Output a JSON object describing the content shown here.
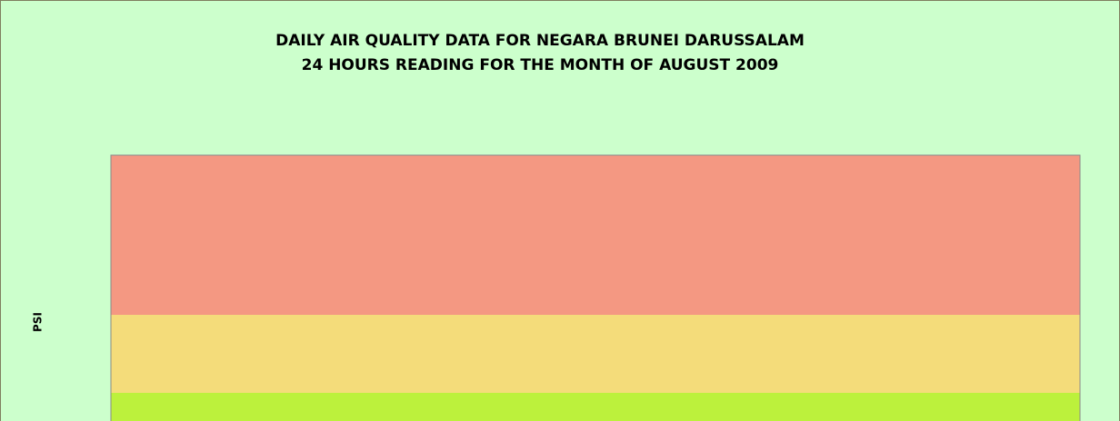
{
  "chart_data": {
    "type": "bands",
    "title": [
      "DAILY AIR QUALITY DATA FOR NEGARA BRUNEI DARUSSALAM",
      "24 HOURS READING FOR THE MONTH OF AUGUST 2009"
    ],
    "ylabel": "PSI",
    "band_colors": [
      "#f49882",
      "#f4dc7a",
      "#bcf13c"
    ]
  }
}
